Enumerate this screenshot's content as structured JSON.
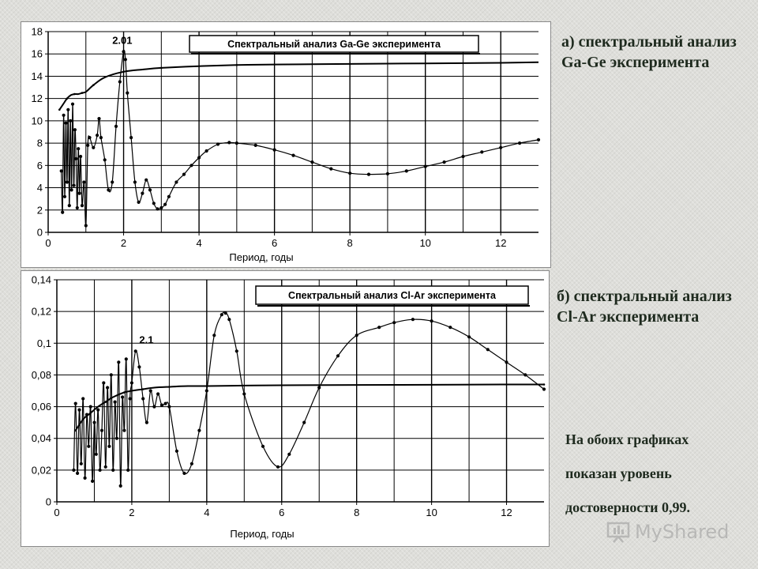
{
  "captions": {
    "a": "а) спектральный анализ Ga-Ge эксперимента",
    "b": "б) спектральный анализ Cl-Ar эксперимента",
    "note_lines": [
      "На обоих графиках",
      "показан уровень",
      "достоверности 0,99."
    ]
  },
  "watermark": "MyShared",
  "colors": {
    "line": "#000000",
    "grid": "#000000",
    "panel": "#ffffff",
    "caption": "#1e2a1e"
  },
  "chart_data": [
    {
      "type": "line",
      "title": "Спектральный анализ Ga-Ge эксперимента",
      "xlabel": "Период, годы",
      "ylabel": "",
      "xlim": [
        0,
        13
      ],
      "ylim": [
        0,
        18
      ],
      "xticks": [
        0,
        2,
        4,
        6,
        8,
        10,
        12
      ],
      "yticks": [
        0,
        2,
        4,
        6,
        8,
        10,
        12,
        14,
        16,
        18
      ],
      "xtick_labels": [
        "0",
        "2",
        "4",
        "6",
        "8",
        "10",
        "12"
      ],
      "ytick_labels": [
        "0",
        "2",
        "4",
        "6",
        "8",
        "10",
        "12",
        "14",
        "16",
        "18"
      ],
      "grid": true,
      "annotation": {
        "text": "2.01",
        "x": 1.7,
        "y": 16.9
      },
      "series": [
        {
          "role": "spectrum",
          "x": [
            0.35,
            0.38,
            0.41,
            0.44,
            0.47,
            0.5,
            0.53,
            0.56,
            0.59,
            0.62,
            0.65,
            0.68,
            0.71,
            0.74,
            0.77,
            0.8,
            0.83,
            0.86,
            0.9,
            0.95,
            1.0,
            1.05,
            1.1,
            1.2,
            1.3,
            1.35,
            1.4,
            1.5,
            1.6,
            1.7,
            1.8,
            1.9,
            2.0,
            2.05,
            2.1,
            2.2,
            2.3,
            2.4,
            2.5,
            2.6,
            2.7,
            2.8,
            2.9,
            3.0,
            3.1,
            3.2,
            3.4,
            3.6,
            3.8,
            4.0,
            4.2,
            4.5,
            4.8,
            5.0,
            5.5,
            6.0,
            6.5,
            7.0,
            7.5,
            8.0,
            8.5,
            9.0,
            9.5,
            10.0,
            10.5,
            11.0,
            11.5,
            12.0,
            12.5,
            13.0
          ],
          "y": [
            5.5,
            1.8,
            10.5,
            3.2,
            9.8,
            4.5,
            11,
            2.4,
            10,
            3.8,
            11.5,
            4.2,
            9.2,
            6.6,
            2.2,
            7.5,
            3.5,
            6.8,
            2.4,
            4.5,
            0.6,
            7.8,
            8.5,
            7.6,
            8.7,
            10.2,
            8.5,
            6.5,
            3.8,
            4.5,
            9.5,
            13.5,
            16.2,
            15.5,
            12.5,
            8.5,
            4.5,
            2.7,
            3.5,
            4.7,
            3.8,
            2.6,
            2.1,
            2.2,
            2.5,
            3.2,
            4.5,
            5.2,
            6.0,
            6.7,
            7.3,
            7.9,
            8.05,
            8.0,
            7.8,
            7.4,
            6.9,
            6.3,
            5.7,
            5.3,
            5.2,
            5.25,
            5.5,
            5.9,
            6.3,
            6.8,
            7.2,
            7.6,
            8.0,
            8.3
          ]
        },
        {
          "role": "confidence_level_0.99",
          "x": [
            0.3,
            0.4,
            0.5,
            0.6,
            0.7,
            0.8,
            0.9,
            1.0,
            1.2,
            1.5,
            2.0,
            2.5,
            3.0,
            4.0,
            5.0,
            6.0,
            8.0,
            10.0,
            12.0,
            13.0
          ],
          "y": [
            11.0,
            11.5,
            12.0,
            12.3,
            12.4,
            12.4,
            12.5,
            12.6,
            13.2,
            13.9,
            14.4,
            14.6,
            14.75,
            14.9,
            15.0,
            15.05,
            15.1,
            15.15,
            15.2,
            15.25
          ]
        }
      ]
    },
    {
      "type": "line",
      "title": "Спектральный анализ Cl-Ar эксперимента",
      "xlabel": "Период, годы",
      "ylabel": "",
      "xlim": [
        0,
        13
      ],
      "ylim": [
        0,
        0.14
      ],
      "xticks": [
        0,
        2,
        4,
        6,
        8,
        10,
        12
      ],
      "yticks": [
        0,
        0.02,
        0.04,
        0.06,
        0.08,
        0.1,
        0.12,
        0.14
      ],
      "xtick_labels": [
        "0",
        "2",
        "4",
        "6",
        "8",
        "10",
        "12"
      ],
      "ytick_labels": [
        "0",
        "0,02",
        "0,04",
        "0,06",
        "0,08",
        "0,1",
        "0,12",
        "0,14"
      ],
      "grid": true,
      "annotation": {
        "text": "2.1",
        "x": 2.2,
        "y": 0.1
      },
      "series": [
        {
          "role": "spectrum",
          "x": [
            0.45,
            0.5,
            0.55,
            0.6,
            0.65,
            0.7,
            0.75,
            0.8,
            0.85,
            0.9,
            0.95,
            1.0,
            1.05,
            1.1,
            1.15,
            1.2,
            1.25,
            1.3,
            1.35,
            1.4,
            1.45,
            1.5,
            1.55,
            1.6,
            1.65,
            1.7,
            1.75,
            1.8,
            1.85,
            1.9,
            1.95,
            2.0,
            2.1,
            2.2,
            2.3,
            2.4,
            2.5,
            2.6,
            2.7,
            2.8,
            2.9,
            3.0,
            3.2,
            3.4,
            3.6,
            3.8,
            4.0,
            4.2,
            4.4,
            4.5,
            4.6,
            4.8,
            5.0,
            5.5,
            5.9,
            6.2,
            6.6,
            7.0,
            7.5,
            8.0,
            8.6,
            9.0,
            9.5,
            10.0,
            10.5,
            11.0,
            11.5,
            12.0,
            12.5,
            13.0
          ],
          "y": [
            0.02,
            0.062,
            0.018,
            0.058,
            0.024,
            0.065,
            0.015,
            0.055,
            0.035,
            0.06,
            0.013,
            0.05,
            0.03,
            0.058,
            0.02,
            0.045,
            0.075,
            0.022,
            0.072,
            0.035,
            0.08,
            0.02,
            0.063,
            0.04,
            0.088,
            0.01,
            0.066,
            0.045,
            0.09,
            0.02,
            0.065,
            0.075,
            0.095,
            0.085,
            0.065,
            0.05,
            0.07,
            0.06,
            0.068,
            0.061,
            0.062,
            0.06,
            0.032,
            0.018,
            0.024,
            0.045,
            0.07,
            0.105,
            0.118,
            0.119,
            0.115,
            0.095,
            0.068,
            0.035,
            0.022,
            0.03,
            0.05,
            0.072,
            0.092,
            0.105,
            0.11,
            0.113,
            0.115,
            0.114,
            0.11,
            0.104,
            0.096,
            0.088,
            0.08,
            0.071
          ]
        },
        {
          "role": "confidence_level_0.99",
          "x": [
            0.5,
            0.7,
            0.9,
            1.1,
            1.3,
            1.5,
            1.8,
            2.0,
            2.3,
            2.6,
            3.0,
            3.5,
            4.0,
            5.0,
            6.0,
            8.0,
            10.0,
            12.0,
            13.0
          ],
          "y": [
            0.045,
            0.052,
            0.056,
            0.06,
            0.063,
            0.066,
            0.069,
            0.07,
            0.071,
            0.072,
            0.0725,
            0.073,
            0.073,
            0.0733,
            0.0735,
            0.0737,
            0.0738,
            0.074,
            0.074
          ]
        }
      ]
    }
  ]
}
